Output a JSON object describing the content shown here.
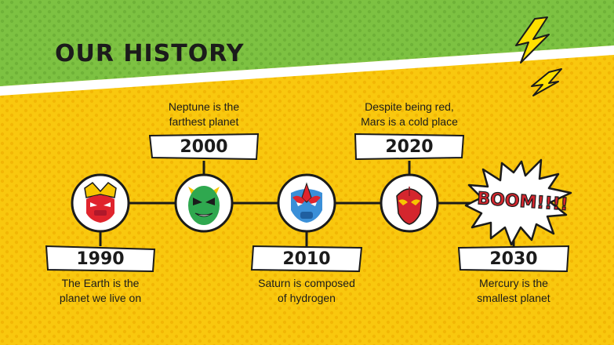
{
  "page": {
    "title": "OUR HISTORY"
  },
  "colors": {
    "green": "#7dc242",
    "yellow": "#f9c80e",
    "dot": "#f2b705",
    "ink": "#1b1b1b",
    "bolt": "#ffe000",
    "boom_red": "#d4262e"
  },
  "milestones": [
    {
      "year": "1990",
      "lines": [
        "The Earth is the",
        "planet we live on"
      ],
      "icon": "red-yellow-hero-mask-icon"
    },
    {
      "year": "2000",
      "lines": [
        "Neptune is the",
        "farthest planet"
      ],
      "icon": "green-villain-mask-icon"
    },
    {
      "year": "2010",
      "lines": [
        "Saturn is composed",
        "of hydrogen"
      ],
      "icon": "blue-red-hero-mask-icon"
    },
    {
      "year": "2020",
      "lines": [
        "Despite being red,",
        "Mars is a cold place"
      ],
      "icon": "red-hero-mask-icon"
    },
    {
      "year": "2030",
      "lines": [
        "Mercury is the",
        "smallest planet"
      ],
      "icon": "boom-burst-icon"
    }
  ],
  "burst": {
    "text": "BOOM!!!!"
  }
}
